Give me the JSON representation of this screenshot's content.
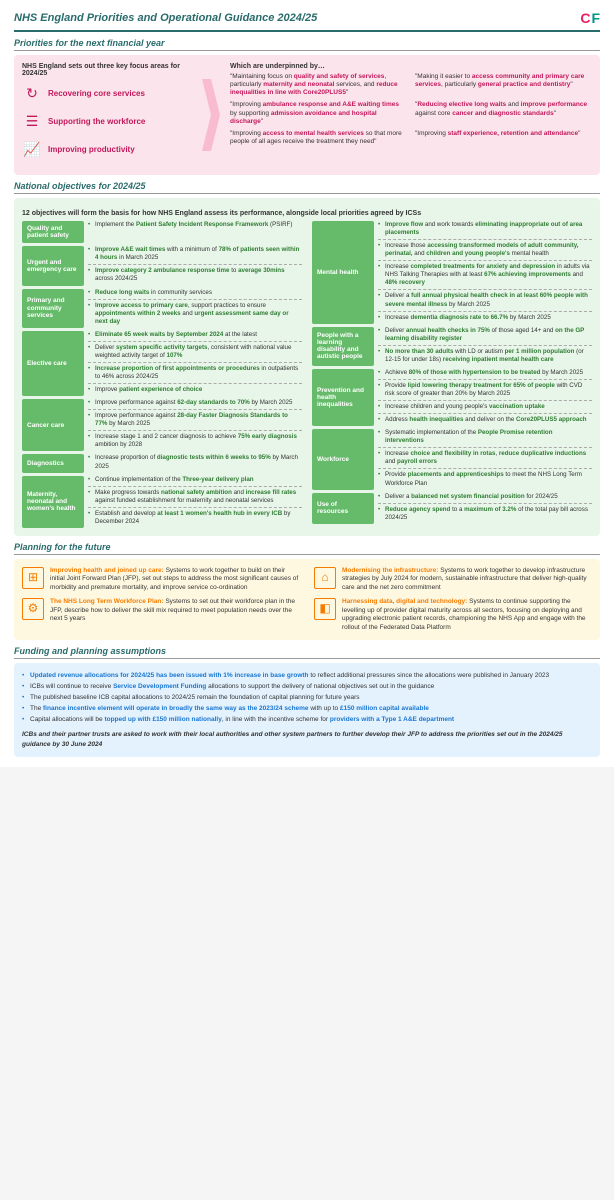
{
  "header": {
    "title": "NHS England Priorities and Operational Guidance 2024/25"
  },
  "sections": {
    "priorities_title": "Priorities for the next financial year",
    "objectives_title": "National objectives for 2024/25",
    "planning_title": "Planning for the future",
    "funding_title": "Funding and planning assumptions"
  },
  "priorities": {
    "intro": "NHS England sets out three key focus areas for 2024/25",
    "items": [
      {
        "label": "Recovering core services"
      },
      {
        "label": "Supporting the workforce"
      },
      {
        "label": "Improving productivity"
      }
    ],
    "underpinned": "Which are underpinned by…",
    "quotes": [
      "\"Maintaining focus on <span class='pink'>quality and safety of services</span>, particularly <span class='pink'>maternity and neonatal</span> services, and <span class='pink'>reduce inequalities in line with Core20PLUS5</span>\"",
      "\"Making it easier to <span class='pink'>access community and primary care services</span>, particularly <span class='pink'>general practice and dentistry</span>\"",
      "\"Improving <span class='pink'>ambulance response and A&E waiting times</span> by supporting <span class='pink'>admission avoidance and hospital discharge</span>\"",
      "\"<span class='pink'>Reducing elective long waits</span> and <span class='pink'>improve performance</span> against core <span class='pink'>cancer and diagnostic standards</span>\"",
      "\"Improving <span class='pink'>access to mental health services</span> so that more people of all ages receive the treatment they need\"",
      "\"Improving <span class='pink'>staff experience, retention and attendance</span>\""
    ]
  },
  "objectives": {
    "intro": "12 objectives will form the basis for how NHS England assess its performance, alongside local priorities agreed by ICSs",
    "left": [
      {
        "label": "Quality and patient safety",
        "items": [
          "Implement the <span class='green'>Patient Safety Incident Response Framework</span> (PSIRF)"
        ]
      },
      {
        "label": "Urgent and emergency care",
        "items": [
          "<span class='green'>Improve A&E wait times</span> with a minimum of <span class='green'>78% of patients seen within 4 hours</span> in March 2025",
          "<span class='green'>Improve category 2 ambulance response time</span> to <span class='green'>average 30mins</span> across 2024/25"
        ]
      },
      {
        "label": "Primary and community services",
        "items": [
          "<span class='green'>Reduce long waits</span> in community services",
          "<span class='green'>Improve access to primary care</span>, support practices to ensure <span class='green'>appointments within 2 weeks</span> and <span class='green'>urgent assessment same day or next day</span>"
        ]
      },
      {
        "label": "Elective care",
        "items": [
          "<span class='green'>Eliminate 65 week waits by September 2024</span> at the latest",
          "Deliver <span class='green'>system specific activity targets</span>, consistent with national value weighted activity target of <span class='green'>107%</span>",
          "<span class='green'>Increase proportion of first appointments or procedures</span> in outpatients to 46% across 2024/25",
          "Improve <span class='green'>patient experience of choice</span>"
        ]
      },
      {
        "label": "Cancer care",
        "items": [
          "Improve performance against <span class='green'>62-day standards to 70%</span> by March 2025",
          "Improve performance against <span class='green'>28-day Faster Diagnosis Standards to 77%</span> by March 2025",
          "Increase stage 1 and 2 cancer diagnosis to achieve <span class='green'>75% early diagnosis</span> ambition by 2028"
        ]
      },
      {
        "label": "Diagnostics",
        "items": [
          "Increase proportion of <span class='green'>diagnostic tests within 6 weeks to 95%</span> by March 2025"
        ]
      },
      {
        "label": "Maternity, neonatal and women's health",
        "items": [
          "Continue implementation of the <span class='green'>Three-year delivery plan</span>",
          "Make progress towards <span class='green'>national safety ambition</span> and <span class='green'>increase fill rates</span> against funded establishment for maternity and neonatal services",
          "Establish and develop <span class='green'>at least 1 women's health hub in every ICB</span> by December 2024"
        ]
      }
    ],
    "right": [
      {
        "label": "Mental health",
        "items": [
          "<span class='green'>Improve flow</span> and work towards <span class='green'>eliminating inappropriate out of area placements</span>",
          "Increase those <span class='green'>accessing transformed models of adult community, perinatal,</span> and <span class='green'>children and young people's</span> mental health",
          "Increase <span class='green'>completed treatments for anxiety and depression</span> in adults via NHS Talking Therapies with at least <span class='green'>67% achieving improvements</span> and <span class='green'>48% recovery</span>",
          "Deliver a <span class='green'>full annual physical health check in at least 60% people with severe mental illness</span> by March 2025",
          "Increase <span class='green'>dementia diagnosis rate to 66.7%</span> by March 2025"
        ]
      },
      {
        "label": "People with a learning disability and autistic people",
        "items": [
          "Deliver <span class='green'>annual health checks in 75%</span> of those aged 14+ and <span class='green'>on the GP learning disability register</span>",
          "<span class='green'>No more than 30 adults</span> with LD or autism <span class='green'>per 1 million population</span> (or 12-15 for under 18s) <span class='green'>receiving inpatient mental health care</span>"
        ]
      },
      {
        "label": "Prevention and health inequalities",
        "items": [
          "Achieve <span class='green'>80% of those with hypertension to be treated</span> by March 2025",
          "Provide <span class='green'>lipid lowering therapy treatment for 65% of people</span> with CVD risk score of greater than 20% by March 2025",
          "Increase children and young people's <span class='green'>vaccination uptake</span>",
          "Address <span class='green'>health inequalities</span> and deliver on the <span class='green'>Core20PLUS5 approach</span>"
        ]
      },
      {
        "label": "Workforce",
        "items": [
          "Systematic implementation of the <span class='green'>People Promise retention interventions</span>",
          "Increase <span class='green'>choice and flexibility in rotas</span>, <span class='green'>reduce duplicative inductions</span> and <span class='green'>payroll errors</span>",
          "Provide <span class='green'>placements and apprenticeships</span> to meet the NHS Long Term Workforce Plan"
        ]
      },
      {
        "label": "Use of resources",
        "items": [
          "Deliver a <span class='green'>balanced net system financial position</span> for 2024/25",
          "<span class='green'>Reduce agency spend</span> to a <span class='green'>maximum of 3.2%</span> of the total pay bill across 2024/25"
        ]
      }
    ]
  },
  "planning": [
    {
      "title": "Improving health and joined up care:",
      "text": " Systems to work together to build on their initial Joint Forward Plan (JFP), set out steps to address the most significant causes of morbidity and premature mortality, and improve service co-ordination"
    },
    {
      "title": "Modernising the infrastructure:",
      "text": " Systems to work together to develop infrastructure strategies by July 2024 for modern, sustainable infrastructure that deliver high-quality care and the net zero commitment"
    },
    {
      "title": "The NHS Long Term Workforce Plan:",
      "text": " Systems to set out their workforce plan in the JFP, describe how to deliver the skill mix required to meet population needs over the next 5 years"
    },
    {
      "title": "Harnessing data, digital and technology:",
      "text": " Systems to continue supporting the levelling up of provider digital maturity across all sectors, focusing on deploying and upgrading electronic patient records, championing the NHS App and engage with the rollout of the Federated Data Platform"
    }
  ],
  "funding": {
    "items": [
      "<span class='blue'>Updated revenue allocations for 2024/25 has been issued with 1% increase in base growth</span> to reflect additional pressures since the allocations were published in January 2023",
      "ICBs will continue to receive <span class='blue'>Service Development Funding</span> allocations to support the delivery of national objectives set out in the guidance",
      "The published baseline ICB capital allocations to 2024/25 remain the foundation of capital planning for future years",
      "The <span class='blue'>finance incentive element will operate in broadly the same way as the 2023/24 scheme</span> with up to <span class='blue'>£150 million capital available</span>",
      "Capital allocations will be <span class='blue'>topped up with £150 million nationally</span>, in line with the incentive scheme for <span class='blue'>providers with a Type 1 A&E department</span>"
    ],
    "footnote": "ICBs and their partner trusts are asked to work with their local authorities and other system partners to further develop their JFP to address the priorities set out in the 2024/25 guidance by 30 June 2024"
  }
}
